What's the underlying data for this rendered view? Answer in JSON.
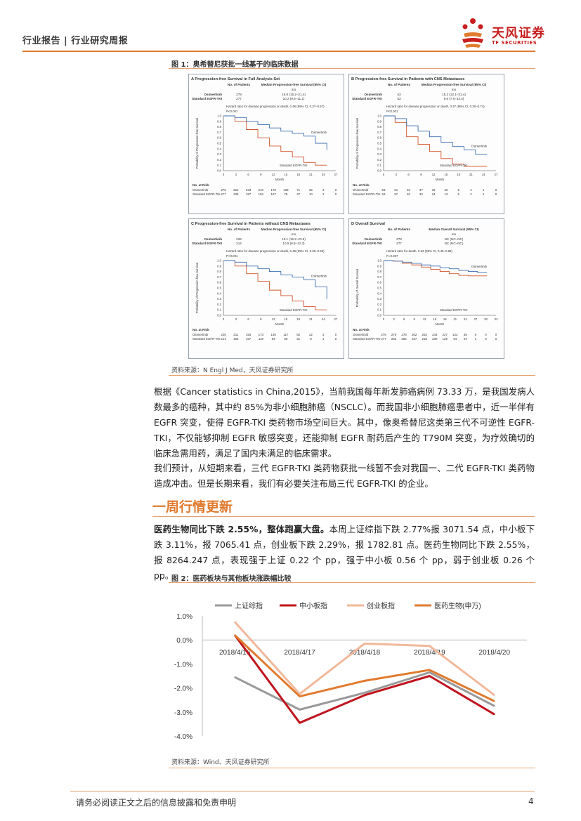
{
  "header": {
    "title": "行业报告 | 行业研究周报",
    "logo_cn": "天风证券",
    "logo_en": "TF SECURITIES"
  },
  "figure1": {
    "title": "图 1：奥希替尼获批一线基于的临床数据",
    "source": "资料来源：N Engl J Med，天风证券研究所",
    "panels": [
      {
        "title": "A  Progression-free Survival in Full Analysis Set",
        "col1": "No. of Patients",
        "col2": "Median Progression-free Survival (95% CI)",
        "unit": "mo",
        "rows": [
          {
            "name": "Osimertinib",
            "n": "279",
            "median": "18.9 (15.2–21.4)"
          },
          {
            "name": "Standard EGFR-TKI",
            "n": "277",
            "median": "10.2 (9.6–11.1)"
          }
        ],
        "hr": "Hazard ratio for disease progression or death, 0.46 (95% CI, 0.37–0.57)",
        "p": "P<0.001",
        "ylabel": "Probability of Progression-free Survival",
        "xticks": [
          "0",
          "3",
          "6",
          "9",
          "12",
          "15",
          "18",
          "21",
          "24",
          "27"
        ],
        "curve_osi": "Osimertinib",
        "curve_std": "Standard EGFR-TKI",
        "risk_osi": [
          "279",
          "262",
          "233",
          "210",
          "178",
          "139",
          "71",
          "26",
          "4",
          "0"
        ],
        "risk_std": [
          "277",
          "239",
          "197",
          "152",
          "107",
          "78",
          "37",
          "10",
          "2",
          "0"
        ]
      },
      {
        "title": "B  Progression-free Survival in Patients with CNS Metastases",
        "col1": "No. of Patients",
        "col2": "Median Progression-free Survival (95% CI)",
        "unit": "mo",
        "rows": [
          {
            "name": "Osimertinib",
            "n": "53",
            "median": "15.2 (12.1–21.4)"
          },
          {
            "name": "Standard EGFR-TKI",
            "n": "63",
            "median": "9.6 (7.0–12.4)"
          }
        ],
        "hr": "Hazard ratio for disease progression or death, 0.47 (95% CI, 0.30–0.74)",
        "p": "P<0.001",
        "ylabel": "Probability of Progression-free Survival",
        "xticks": [
          "0",
          "3",
          "6",
          "9",
          "12",
          "15",
          "18",
          "21",
          "24",
          "27"
        ],
        "curve_osi": "Osimertinib",
        "curve_std": "Standard EGFR-TKI",
        "risk_osi": [
          "53",
          "51",
          "40",
          "37",
          "32",
          "22",
          "9",
          "4",
          "1",
          "0"
        ],
        "risk_std": [
          "63",
          "57",
          "40",
          "33",
          "24",
          "13",
          "6",
          "2",
          "1",
          "0"
        ]
      },
      {
        "title": "C  Progression-free Survival in Patients without CNS Metastases",
        "col1": "No. of Patients",
        "col2": "Median Progression-free Survival (95% CI)",
        "unit": "mo",
        "rows": [
          {
            "name": "Osimertinib",
            "n": "226",
            "median": "19.1 (15.2–23.5)"
          },
          {
            "name": "Standard EGFR-TKI",
            "n": "214",
            "median": "10.9 (9.6–12.3)"
          }
        ],
        "hr": "Hazard ratio for disease progression or death, 0.46 (95% CI, 0.36–0.59)",
        "p": "P<0.001",
        "ylabel": "Probability of Progression-free Survival",
        "xticks": [
          "0",
          "3",
          "6",
          "9",
          "12",
          "15",
          "18",
          "21",
          "24",
          "27"
        ],
        "curve_osi": "Osimertinib",
        "curve_std": "Standard EGFR-TKI",
        "risk_osi": [
          "226",
          "211",
          "193",
          "173",
          "146",
          "117",
          "62",
          "22",
          "3",
          "0"
        ],
        "risk_std": [
          "214",
          "182",
          "157",
          "119",
          "83",
          "65",
          "31",
          "8",
          "1",
          "0"
        ]
      },
      {
        "title": "D  Overall Survival",
        "col1": "No. of Patients",
        "col2": "Median Overall Survival (95% CI)",
        "unit": "mo",
        "rows": [
          {
            "name": "Osimertinib",
            "n": "279",
            "median": "NC (NC–NC)"
          },
          {
            "name": "Standard EGFR-TKI",
            "n": "277",
            "median": "NC (NC–NC)"
          }
        ],
        "hr": "Hazard ratio for death, 0.63 (95% CI, 0.45–0.88)",
        "p": "P=0.007",
        "ylabel": "Probability of Overall Survival",
        "xticks": [
          "0",
          "3",
          "6",
          "9",
          "12",
          "15",
          "18",
          "21",
          "24",
          "27",
          "30",
          "33"
        ],
        "curve_osi": "Osimertinib",
        "curve_std": "Standard EGFR-TKI",
        "risk_osi": [
          "279",
          "276",
          "276",
          "262",
          "253",
          "243",
          "227",
          "122",
          "36",
          "6",
          "0",
          "0"
        ],
        "risk_std": [
          "277",
          "263",
          "252",
          "237",
          "218",
          "200",
          "126",
          "64",
          "24",
          "1",
          "0",
          "0"
        ]
      }
    ],
    "yticks": [
      "1.0",
      "0.9",
      "0.8",
      "0.7",
      "0.6",
      "0.5",
      "0.4",
      "0.3",
      "0.2",
      "0.1",
      "0.0"
    ],
    "xlabel": "Month",
    "risk_label": "No. at Risk",
    "risk_osi_name": "Osimertinib",
    "risk_std_name": "Standard EGFR-TKI"
  },
  "paragraphs": {
    "p1": "根据《Cancer statistics in China,2015》，当前我国每年新发肺癌病例 73.33 万，是我国发病人数最多的癌种，其中约 85%为非小细胞肺癌（NSCLC）。而我国非小细胞肺癌患者中，近一半伴有 EGFR 突变，使得 EGFR-TKI 类药物市场空间巨大。其中，像奥希替尼这类第三代不可逆性 EGFR-TKI，不仅能够抑制 EGFR 敏感突变，还能抑制 EGFR 耐药后产生的 T790M 突变，为疗效确切的临床急需用药，满足了国内未满足的临床需求。",
    "p2": "我们预计，从短期来看，三代 EGFR-TKI 类药物获批一线暂不会对我国一、二代 EGFR-TKI 类药物造成冲击。但是长期来看，我们有必要关注布局三代 EGFR-TKI 的企业。",
    "section_title": "一周行情更新",
    "p3_bold": "医药生物同比下跌 2.55%，整体跑赢大盘。",
    "p3_rest": "本周上证综指下跌 2.77%报 3071.54 点，中小板下跌 3.11%，报 7065.41 点，创业板下跌 2.29%，报 1782.81 点。医药生物同比下跌 2.55%，报 8264.247 点，表现强于上证 0.22 个 pp，强于中小板 0.56 个 pp，弱于创业板 0.26 个 pp。"
  },
  "figure2": {
    "title": "图 2：医药板块与其他板块涨跌幅比较",
    "source": "资料来源：Wind、天风证券研究所"
  },
  "chart_data": {
    "type": "line",
    "title": "",
    "categories": [
      "2018/4/16",
      "2018/4/17",
      "2018/4/18",
      "2018/4/19",
      "2018/4/20"
    ],
    "series": [
      {
        "name": "上证综指",
        "color": "#9a9a9a",
        "values": [
          -1.55,
          -2.9,
          -2.2,
          -1.35,
          -2.75
        ]
      },
      {
        "name": "中小板指",
        "color": "#c0141e",
        "values": [
          0.2,
          -3.45,
          -2.3,
          -1.5,
          -3.1
        ]
      },
      {
        "name": "创业板指",
        "color": "#f2b89a",
        "values": [
          0.75,
          -2.25,
          -0.15,
          -0.25,
          -2.3
        ]
      },
      {
        "name": "医药生物(申万)",
        "color": "#e07a2e",
        "values": [
          0.2,
          -2.35,
          -1.7,
          -1.25,
          -2.55
        ]
      }
    ],
    "yticks": [
      "1.0%",
      "0.0%",
      "-1.0%",
      "-2.0%",
      "-3.0%",
      "-4.0%"
    ],
    "ylim": [
      -4.0,
      1.0
    ],
    "xlabel": "",
    "ylabel": "",
    "legend": "top"
  },
  "footer": {
    "disclaimer": "请务必阅读正文之后的信息披露和免责申明",
    "page": "4"
  }
}
